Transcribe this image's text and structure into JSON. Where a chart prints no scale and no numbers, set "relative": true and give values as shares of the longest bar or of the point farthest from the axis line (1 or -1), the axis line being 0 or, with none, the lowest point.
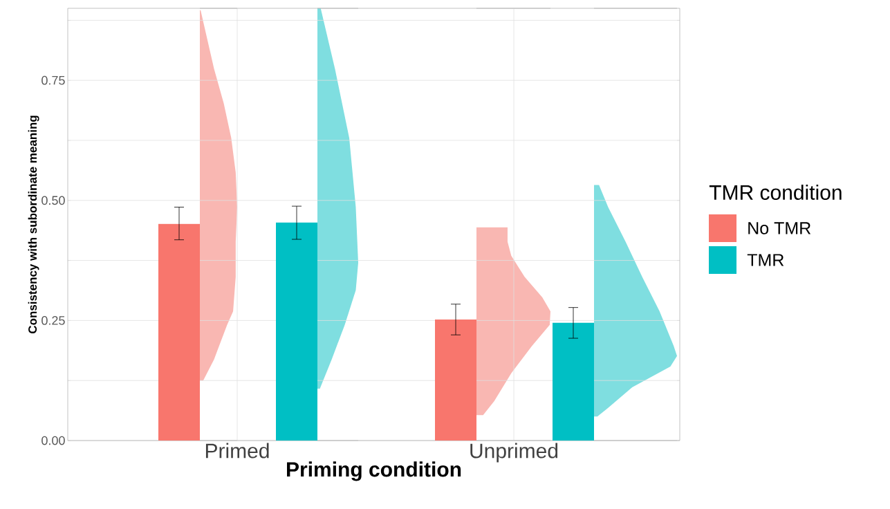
{
  "chart_data": [
    {
      "type": "bar",
      "xlabel": "Priming condition",
      "ylabel": "Consistency with subordinate meaning",
      "legend_title": "TMR condition",
      "legend": "right",
      "grid": true,
      "categories": [
        "Primed",
        "Unprimed"
      ],
      "ylim": [
        0,
        0.9
      ],
      "yticks": [
        {
          "value": 0,
          "label": "0.00"
        },
        {
          "value": 0.125,
          "label": null
        },
        {
          "value": 0.25,
          "label": "0.25"
        },
        {
          "value": 0.375,
          "label": null
        },
        {
          "value": 0.5,
          "label": "0.50"
        },
        {
          "value": 0.625,
          "label": null
        },
        {
          "value": 0.75,
          "label": "0.75"
        },
        {
          "value": 0.875,
          "label": null
        }
      ],
      "series": [
        {
          "name": "No TMR",
          "color": "#f8766d",
          "values": [
            0.451,
            0.252
          ],
          "errors": [
            [
              0.418,
              0.486
            ],
            [
              0.22,
              0.284
            ]
          ]
        },
        {
          "name": "TMR",
          "color": "#00bfc4",
          "values": [
            0.454,
            0.245
          ],
          "errors": [
            [
              0.419,
              0.488
            ],
            [
              0.213,
              0.277
            ]
          ]
        }
      ]
    },
    {
      "type": "area",
      "orientation": "horizontal",
      "relative": true,
      "tick_labels": false,
      "ylim": [
        0,
        0.9
      ],
      "color": "#f9b7b2",
      "x": [
        0.896,
        0.774,
        0.702,
        0.63,
        0.558,
        0.486,
        0.414,
        0.341,
        0.269,
        0.241,
        0.169,
        0.125
      ],
      "values": [
        0.02,
        0.38,
        0.64,
        0.84,
        0.96,
        1.0,
        0.96,
        0.96,
        0.89,
        0.73,
        0.38,
        0.09
      ]
    },
    {
      "type": "area",
      "orientation": "horizontal",
      "relative": true,
      "tick_labels": false,
      "ylim": [
        0,
        0.9
      ],
      "color": "#7fdee0",
      "x": [
        0.9,
        0.774,
        0.63,
        0.486,
        0.37,
        0.313,
        0.241,
        0.169,
        0.108
      ],
      "values": [
        0.08,
        0.43,
        0.78,
        0.94,
        1.0,
        0.94,
        0.67,
        0.35,
        0.06
      ]
    },
    {
      "type": "area",
      "orientation": "horizontal",
      "relative": true,
      "tick_labels": false,
      "ylim": [
        0,
        0.9
      ],
      "color": "#f9b7b2",
      "x": [
        0.444,
        0.414,
        0.385,
        0.341,
        0.298,
        0.269,
        0.241,
        0.197,
        0.14,
        0.082,
        0.053
      ],
      "values": [
        0.42,
        0.42,
        0.47,
        0.65,
        0.89,
        1.0,
        0.99,
        0.75,
        0.47,
        0.24,
        0.09
      ]
    },
    {
      "type": "area",
      "orientation": "horizontal",
      "relative": true,
      "tick_labels": false,
      "ylim": [
        0,
        0.9
      ],
      "color": "#7fdee0",
      "x": [
        0.532,
        0.486,
        0.414,
        0.341,
        0.269,
        0.197,
        0.176,
        0.154,
        0.111,
        0.068,
        0.05
      ],
      "values": [
        0.06,
        0.17,
        0.38,
        0.58,
        0.79,
        0.96,
        1.0,
        0.92,
        0.46,
        0.17,
        0.04
      ]
    }
  ]
}
